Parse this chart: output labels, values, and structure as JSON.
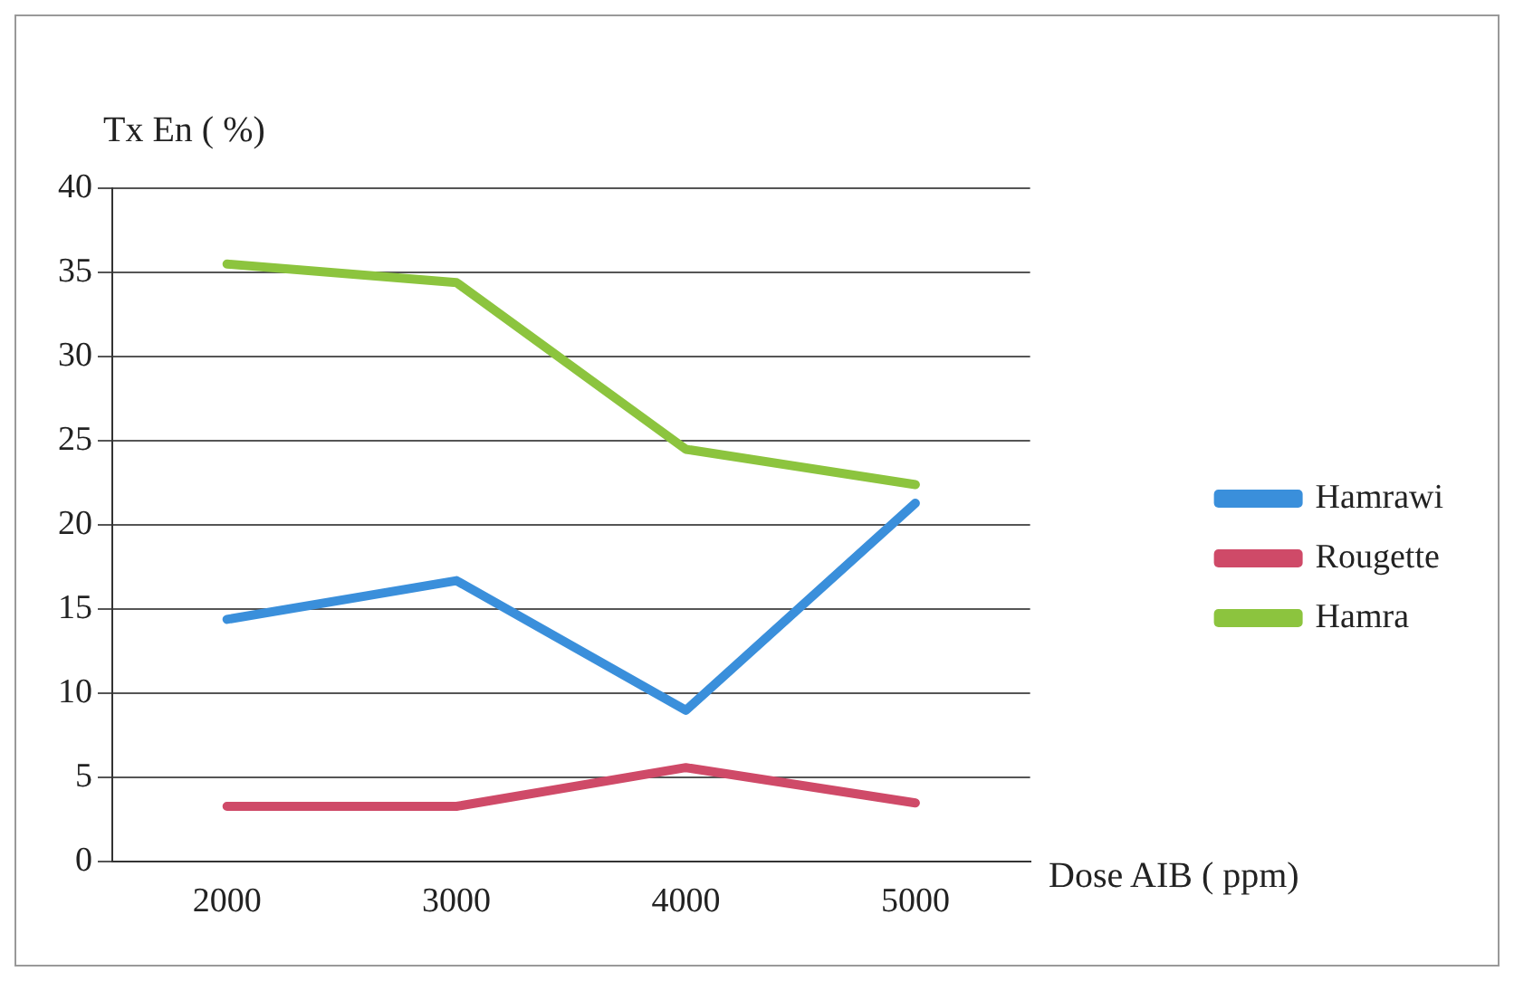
{
  "chart_data": {
    "type": "line",
    "xlabel": "Dose AIB ( ppm)",
    "ylabel": "Tx En ( %)",
    "categories": [
      "2000",
      "3000",
      "4000",
      "5000"
    ],
    "series": [
      {
        "name": "Hamrawi",
        "color": "#3a8fdb",
        "values": [
          14.4,
          16.7,
          9.0,
          21.3
        ]
      },
      {
        "name": "Rougette",
        "color": "#cf4a68",
        "values": [
          3.3,
          3.3,
          5.6,
          3.5
        ]
      },
      {
        "name": "Hamra",
        "color": "#8cc43e",
        "values": [
          35.5,
          34.4,
          24.5,
          22.4
        ]
      }
    ],
    "ylim": [
      0,
      40
    ],
    "yticks": [
      0,
      5,
      10,
      15,
      20,
      25,
      30,
      35,
      40
    ],
    "grid": "y",
    "legend": "right",
    "marker": "none",
    "line_style": "solid"
  }
}
